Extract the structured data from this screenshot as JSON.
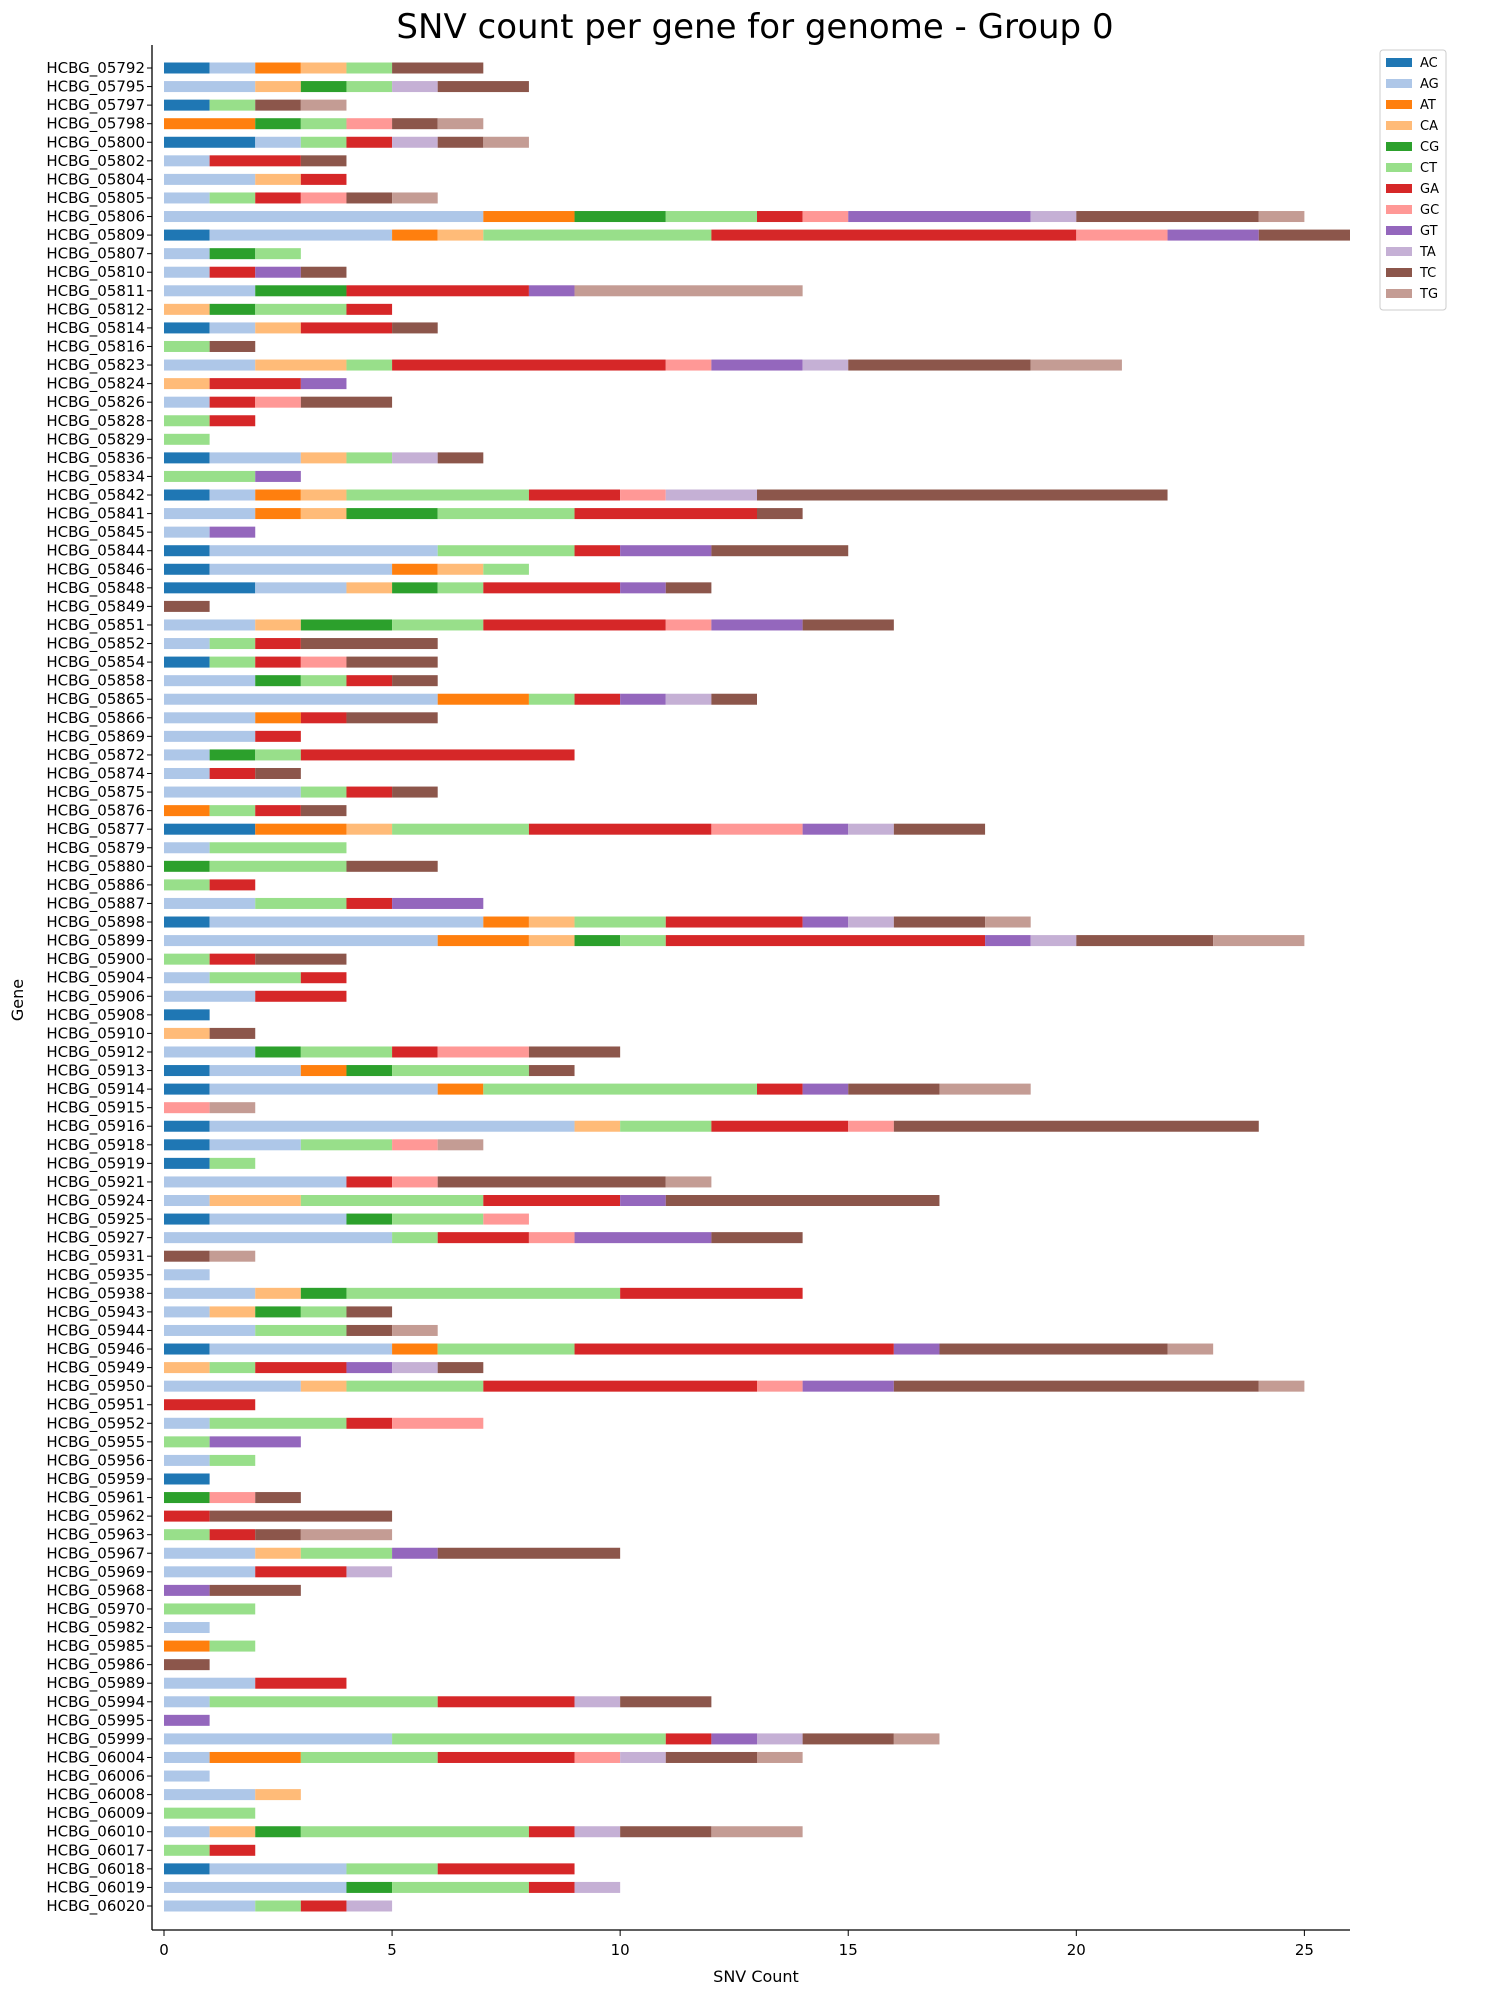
{
  "chart_data": {
    "type": "bar",
    "orientation": "horizontal",
    "stacked": true,
    "title": "SNV count per gene for genome - Group 0",
    "xlabel": "SNV Count",
    "ylabel": "Gene",
    "xlim": [
      0,
      26
    ],
    "xticks": [
      0,
      5,
      10,
      15,
      20,
      25
    ],
    "legend_position": "top-right outside",
    "series": [
      {
        "name": "AC",
        "color": "#1f77b4"
      },
      {
        "name": "AG",
        "color": "#aec7e8"
      },
      {
        "name": "AT",
        "color": "#ff7f0e"
      },
      {
        "name": "CA",
        "color": "#ffbb78"
      },
      {
        "name": "CG",
        "color": "#2ca02c"
      },
      {
        "name": "CT",
        "color": "#98df8a"
      },
      {
        "name": "GA",
        "color": "#d62728"
      },
      {
        "name": "GC",
        "color": "#ff9896"
      },
      {
        "name": "GT",
        "color": "#9467bd"
      },
      {
        "name": "TA",
        "color": "#c5b0d5"
      },
      {
        "name": "TC",
        "color": "#8c564b"
      },
      {
        "name": "TG",
        "color": "#c49c94"
      }
    ],
    "genes": [
      {
        "gene": "HCBG_05792",
        "counts": {
          "AC": 1,
          "AG": 1,
          "AT": 1,
          "CA": 1,
          "CT": 1,
          "TC": 2
        }
      },
      {
        "gene": "HCBG_05795",
        "counts": {
          "AG": 2,
          "CA": 1,
          "CG": 1,
          "CT": 1,
          "TA": 1,
          "TC": 2
        }
      },
      {
        "gene": "HCBG_05797",
        "counts": {
          "AC": 1,
          "CT": 1,
          "TC": 1,
          "TG": 1
        }
      },
      {
        "gene": "HCBG_05798",
        "counts": {
          "AT": 2,
          "CG": 1,
          "CT": 1,
          "GC": 1,
          "TC": 1,
          "TG": 1
        }
      },
      {
        "gene": "HCBG_05800",
        "counts": {
          "AC": 2,
          "AG": 1,
          "CT": 1,
          "GA": 1,
          "TA": 1,
          "TC": 1,
          "TG": 1
        }
      },
      {
        "gene": "HCBG_05802",
        "counts": {
          "AG": 1,
          "GA": 2,
          "TC": 1
        }
      },
      {
        "gene": "HCBG_05804",
        "counts": {
          "AG": 2,
          "CA": 1,
          "GA": 1
        }
      },
      {
        "gene": "HCBG_05805",
        "counts": {
          "AG": 1,
          "CT": 1,
          "GA": 1,
          "GC": 1,
          "TC": 1,
          "TG": 1
        }
      },
      {
        "gene": "HCBG_05806",
        "counts": {
          "AG": 7,
          "AT": 2,
          "CG": 2,
          "CT": 2,
          "GA": 1,
          "GC": 1,
          "GT": 4,
          "TA": 1,
          "TC": 4,
          "TG": 1
        }
      },
      {
        "gene": "HCBG_05809",
        "counts": {
          "AC": 1,
          "AG": 4,
          "AT": 1,
          "CA": 1,
          "CT": 5,
          "GA": 8,
          "GC": 2,
          "GT": 2,
          "TC": 2
        }
      },
      {
        "gene": "HCBG_05807",
        "counts": {
          "AG": 1,
          "CG": 1,
          "CT": 1
        }
      },
      {
        "gene": "HCBG_05810",
        "counts": {
          "AG": 1,
          "GA": 1,
          "GT": 1,
          "TC": 1
        }
      },
      {
        "gene": "HCBG_05811",
        "counts": {
          "AG": 2,
          "CG": 2,
          "GA": 4,
          "GT": 1,
          "TG": 5
        }
      },
      {
        "gene": "HCBG_05812",
        "counts": {
          "CA": 1,
          "CG": 1,
          "CT": 2,
          "GA": 1
        }
      },
      {
        "gene": "HCBG_05814",
        "counts": {
          "AC": 1,
          "AG": 1,
          "CA": 1,
          "GA": 2,
          "TC": 1
        }
      },
      {
        "gene": "HCBG_05816",
        "counts": {
          "CT": 1,
          "TC": 1
        }
      },
      {
        "gene": "HCBG_05823",
        "counts": {
          "AG": 2,
          "CA": 2,
          "CT": 1,
          "GA": 6,
          "GC": 1,
          "GT": 2,
          "TA": 1,
          "TC": 4,
          "TG": 2
        }
      },
      {
        "gene": "HCBG_05824",
        "counts": {
          "CA": 1,
          "GA": 2,
          "GT": 1
        }
      },
      {
        "gene": "HCBG_05826",
        "counts": {
          "AG": 1,
          "GA": 1,
          "GC": 1,
          "TC": 2
        }
      },
      {
        "gene": "HCBG_05828",
        "counts": {
          "CT": 1,
          "GA": 1
        }
      },
      {
        "gene": "HCBG_05829",
        "counts": {
          "CT": 1
        }
      },
      {
        "gene": "HCBG_05836",
        "counts": {
          "AC": 1,
          "AG": 2,
          "CA": 1,
          "CT": 1,
          "TA": 1,
          "TC": 1
        }
      },
      {
        "gene": "HCBG_05834",
        "counts": {
          "CT": 2,
          "GT": 1
        }
      },
      {
        "gene": "HCBG_05842",
        "counts": {
          "AC": 1,
          "AG": 1,
          "AT": 1,
          "CA": 1,
          "CT": 4,
          "GA": 2,
          "GC": 1,
          "TA": 2,
          "TC": 9
        }
      },
      {
        "gene": "HCBG_05841",
        "counts": {
          "AG": 2,
          "AT": 1,
          "CA": 1,
          "CG": 2,
          "CT": 3,
          "GA": 4,
          "TC": 1
        }
      },
      {
        "gene": "HCBG_05845",
        "counts": {
          "AG": 1,
          "GT": 1
        }
      },
      {
        "gene": "HCBG_05844",
        "counts": {
          "AC": 1,
          "AG": 5,
          "CT": 3,
          "GA": 1,
          "GT": 2,
          "TC": 3
        }
      },
      {
        "gene": "HCBG_05846",
        "counts": {
          "AC": 1,
          "AG": 4,
          "AT": 1,
          "CA": 1,
          "CT": 1
        }
      },
      {
        "gene": "HCBG_05848",
        "counts": {
          "AC": 2,
          "AG": 2,
          "CA": 1,
          "CG": 1,
          "CT": 1,
          "GA": 3,
          "GT": 1,
          "TC": 1
        }
      },
      {
        "gene": "HCBG_05849",
        "counts": {
          "TC": 1
        }
      },
      {
        "gene": "HCBG_05851",
        "counts": {
          "AG": 2,
          "CA": 1,
          "CG": 2,
          "CT": 2,
          "GA": 4,
          "GC": 1,
          "GT": 2,
          "TC": 2
        }
      },
      {
        "gene": "HCBG_05852",
        "counts": {
          "AG": 1,
          "CT": 1,
          "GA": 1,
          "TC": 3
        }
      },
      {
        "gene": "HCBG_05854",
        "counts": {
          "AC": 1,
          "CT": 1,
          "GA": 1,
          "GC": 1,
          "TC": 2
        }
      },
      {
        "gene": "HCBG_05858",
        "counts": {
          "AG": 2,
          "CG": 1,
          "CT": 1,
          "GA": 1,
          "TC": 1
        }
      },
      {
        "gene": "HCBG_05865",
        "counts": {
          "AG": 6,
          "AT": 2,
          "CT": 1,
          "GA": 1,
          "GT": 1,
          "TA": 1,
          "TC": 1
        }
      },
      {
        "gene": "HCBG_05866",
        "counts": {
          "AG": 2,
          "AT": 1,
          "GA": 1,
          "TC": 2
        }
      },
      {
        "gene": "HCBG_05869",
        "counts": {
          "AG": 2,
          "GA": 1
        }
      },
      {
        "gene": "HCBG_05872",
        "counts": {
          "AG": 1,
          "CG": 1,
          "CT": 1,
          "GA": 6
        }
      },
      {
        "gene": "HCBG_05874",
        "counts": {
          "AG": 1,
          "GA": 1,
          "TC": 1
        }
      },
      {
        "gene": "HCBG_05875",
        "counts": {
          "AG": 3,
          "CT": 1,
          "GA": 1,
          "TC": 1
        }
      },
      {
        "gene": "HCBG_05876",
        "counts": {
          "AT": 1,
          "CT": 1,
          "GA": 1,
          "TC": 1
        }
      },
      {
        "gene": "HCBG_05877",
        "counts": {
          "AC": 2,
          "AT": 2,
          "CA": 1,
          "CT": 3,
          "GA": 4,
          "GC": 2,
          "GT": 1,
          "TA": 1,
          "TC": 2
        }
      },
      {
        "gene": "HCBG_05879",
        "counts": {
          "AG": 1,
          "CT": 3
        }
      },
      {
        "gene": "HCBG_05880",
        "counts": {
          "CG": 1,
          "CT": 3,
          "TC": 2
        }
      },
      {
        "gene": "HCBG_05886",
        "counts": {
          "CT": 1,
          "GA": 1
        }
      },
      {
        "gene": "HCBG_05887",
        "counts": {
          "AG": 2,
          "CT": 2,
          "GA": 1,
          "GT": 2
        }
      },
      {
        "gene": "HCBG_05898",
        "counts": {
          "AC": 1,
          "AG": 6,
          "AT": 1,
          "CA": 1,
          "CT": 2,
          "GA": 3,
          "GT": 1,
          "TA": 1,
          "TC": 2,
          "TG": 1
        }
      },
      {
        "gene": "HCBG_05899",
        "counts": {
          "AG": 6,
          "AT": 2,
          "CA": 1,
          "CG": 1,
          "CT": 1,
          "GA": 7,
          "GT": 1,
          "TA": 1,
          "TC": 3,
          "TG": 2
        }
      },
      {
        "gene": "HCBG_05900",
        "counts": {
          "CT": 1,
          "GA": 1,
          "TC": 2
        }
      },
      {
        "gene": "HCBG_05904",
        "counts": {
          "AG": 1,
          "CT": 2,
          "GA": 1
        }
      },
      {
        "gene": "HCBG_05906",
        "counts": {
          "AG": 2,
          "GA": 2
        }
      },
      {
        "gene": "HCBG_05908",
        "counts": {
          "AC": 1
        }
      },
      {
        "gene": "HCBG_05910",
        "counts": {
          "CA": 1,
          "TC": 1
        }
      },
      {
        "gene": "HCBG_05912",
        "counts": {
          "AG": 2,
          "CG": 1,
          "CT": 2,
          "GA": 1,
          "GC": 2,
          "TC": 2
        }
      },
      {
        "gene": "HCBG_05913",
        "counts": {
          "AC": 1,
          "AG": 2,
          "AT": 1,
          "CG": 1,
          "CT": 3,
          "TC": 1
        }
      },
      {
        "gene": "HCBG_05914",
        "counts": {
          "AC": 1,
          "AG": 5,
          "AT": 1,
          "CT": 6,
          "GA": 1,
          "GT": 1,
          "TC": 2,
          "TG": 2
        }
      },
      {
        "gene": "HCBG_05915",
        "counts": {
          "GC": 1,
          "TG": 1
        }
      },
      {
        "gene": "HCBG_05916",
        "counts": {
          "AC": 1,
          "AG": 8,
          "CA": 1,
          "CT": 2,
          "GA": 3,
          "GC": 1,
          "TC": 8
        }
      },
      {
        "gene": "HCBG_05918",
        "counts": {
          "AC": 1,
          "AG": 2,
          "CT": 2,
          "GC": 1,
          "TG": 1
        }
      },
      {
        "gene": "HCBG_05919",
        "counts": {
          "AC": 1,
          "CT": 1
        }
      },
      {
        "gene": "HCBG_05921",
        "counts": {
          "AG": 4,
          "GA": 1,
          "GC": 1,
          "TC": 5,
          "TG": 1
        }
      },
      {
        "gene": "HCBG_05924",
        "counts": {
          "AG": 1,
          "CA": 2,
          "CT": 4,
          "GA": 3,
          "GT": 1,
          "TC": 6
        }
      },
      {
        "gene": "HCBG_05925",
        "counts": {
          "AC": 1,
          "AG": 3,
          "CG": 1,
          "CT": 2,
          "GC": 1
        }
      },
      {
        "gene": "HCBG_05927",
        "counts": {
          "AG": 5,
          "CT": 1,
          "GA": 2,
          "GC": 1,
          "GT": 3,
          "TC": 2
        }
      },
      {
        "gene": "HCBG_05931",
        "counts": {
          "TC": 1,
          "TG": 1
        }
      },
      {
        "gene": "HCBG_05935",
        "counts": {
          "AG": 1
        }
      },
      {
        "gene": "HCBG_05938",
        "counts": {
          "AG": 2,
          "CA": 1,
          "CG": 1,
          "CT": 6,
          "GA": 4
        }
      },
      {
        "gene": "HCBG_05943",
        "counts": {
          "AG": 1,
          "CA": 1,
          "CG": 1,
          "CT": 1,
          "TC": 1
        }
      },
      {
        "gene": "HCBG_05944",
        "counts": {
          "AG": 2,
          "CT": 2,
          "TC": 1,
          "TG": 1
        }
      },
      {
        "gene": "HCBG_05946",
        "counts": {
          "AC": 1,
          "AG": 4,
          "AT": 1,
          "CT": 3,
          "GA": 7,
          "GT": 1,
          "TC": 5,
          "TG": 1
        }
      },
      {
        "gene": "HCBG_05949",
        "counts": {
          "CA": 1,
          "CT": 1,
          "GA": 2,
          "GT": 1,
          "TA": 1,
          "TC": 1
        }
      },
      {
        "gene": "HCBG_05950",
        "counts": {
          "AG": 3,
          "CA": 1,
          "CT": 3,
          "GA": 6,
          "GC": 1,
          "GT": 2,
          "TC": 8,
          "TG": 1
        }
      },
      {
        "gene": "HCBG_05951",
        "counts": {
          "GA": 2
        }
      },
      {
        "gene": "HCBG_05952",
        "counts": {
          "AG": 1,
          "CT": 3,
          "GA": 1,
          "GC": 2
        }
      },
      {
        "gene": "HCBG_05955",
        "counts": {
          "CT": 1,
          "GT": 2
        }
      },
      {
        "gene": "HCBG_05956",
        "counts": {
          "AG": 1,
          "CT": 1
        }
      },
      {
        "gene": "HCBG_05959",
        "counts": {
          "AC": 1
        }
      },
      {
        "gene": "HCBG_05961",
        "counts": {
          "CG": 1,
          "GC": 1,
          "TC": 1
        }
      },
      {
        "gene": "HCBG_05962",
        "counts": {
          "GA": 1,
          "TC": 4
        }
      },
      {
        "gene": "HCBG_05963",
        "counts": {
          "CT": 1,
          "GA": 1,
          "TC": 1,
          "TG": 2
        }
      },
      {
        "gene": "HCBG_05967",
        "counts": {
          "AG": 2,
          "CA": 1,
          "CT": 2,
          "GT": 1,
          "TC": 4
        }
      },
      {
        "gene": "HCBG_05969",
        "counts": {
          "AG": 2,
          "GA": 2,
          "TA": 1
        }
      },
      {
        "gene": "HCBG_05968",
        "counts": {
          "GT": 1,
          "TC": 2
        }
      },
      {
        "gene": "HCBG_05970",
        "counts": {
          "CT": 2
        }
      },
      {
        "gene": "HCBG_05982",
        "counts": {
          "AG": 1
        }
      },
      {
        "gene": "HCBG_05985",
        "counts": {
          "AT": 1,
          "CT": 1
        }
      },
      {
        "gene": "HCBG_05986",
        "counts": {
          "TC": 1
        }
      },
      {
        "gene": "HCBG_05989",
        "counts": {
          "AG": 2,
          "GA": 2
        }
      },
      {
        "gene": "HCBG_05994",
        "counts": {
          "AG": 1,
          "CT": 5,
          "GA": 3,
          "TA": 1,
          "TC": 2
        }
      },
      {
        "gene": "HCBG_05995",
        "counts": {
          "GT": 1
        }
      },
      {
        "gene": "HCBG_05999",
        "counts": {
          "AG": 5,
          "CT": 6,
          "GA": 1,
          "GT": 1,
          "TA": 1,
          "TC": 2,
          "TG": 1
        }
      },
      {
        "gene": "HCBG_06004",
        "counts": {
          "AG": 1,
          "AT": 2,
          "CT": 3,
          "GA": 3,
          "GC": 1,
          "TA": 1,
          "TC": 2,
          "TG": 1
        }
      },
      {
        "gene": "HCBG_06006",
        "counts": {
          "AG": 1
        }
      },
      {
        "gene": "HCBG_06008",
        "counts": {
          "AG": 2,
          "CA": 1
        }
      },
      {
        "gene": "HCBG_06009",
        "counts": {
          "CT": 2
        }
      },
      {
        "gene": "HCBG_06010",
        "counts": {
          "AG": 1,
          "CA": 1,
          "CG": 1,
          "CT": 5,
          "GA": 1,
          "TA": 1,
          "TC": 2,
          "TG": 2
        }
      },
      {
        "gene": "HCBG_06017",
        "counts": {
          "CT": 1,
          "GA": 1
        }
      },
      {
        "gene": "HCBG_06018",
        "counts": {
          "AC": 1,
          "AG": 3,
          "CT": 2,
          "GA": 3
        }
      },
      {
        "gene": "HCBG_06019",
        "counts": {
          "AG": 4,
          "CG": 1,
          "CT": 3,
          "GA": 1,
          "TA": 1
        }
      },
      {
        "gene": "HCBG_06020",
        "counts": {
          "AG": 2,
          "CT": 1,
          "GA": 1,
          "TA": 1
        }
      }
    ]
  }
}
